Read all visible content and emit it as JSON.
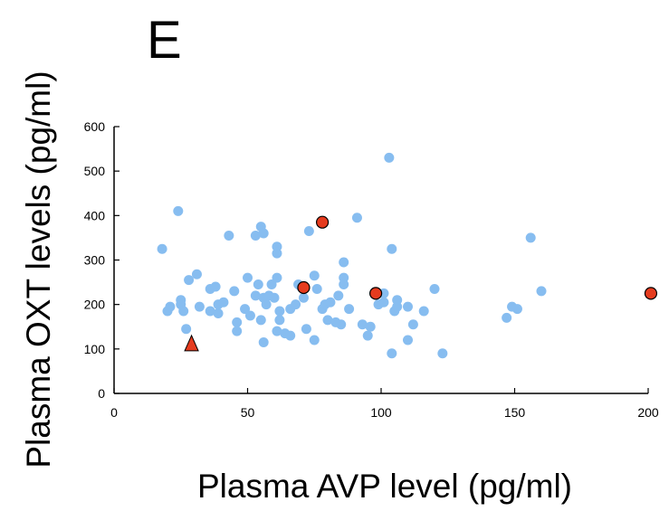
{
  "chart_data": {
    "type": "scatter",
    "panel_label": "E",
    "title": "",
    "xlabel": "Plasma AVP level (pg/ml)",
    "ylabel": "Plasma OXT levels (pg/ml)",
    "xlim": [
      0,
      200
    ],
    "ylim": [
      0,
      600
    ],
    "xticks": [
      0,
      50,
      100,
      150,
      200
    ],
    "yticks": [
      0,
      100,
      200,
      300,
      400,
      500,
      600
    ],
    "grid": false,
    "legend": "none",
    "series": [
      {
        "marker": "circle",
        "color": "#87bdf0",
        "points": [
          [
            18,
            325
          ],
          [
            20,
            185
          ],
          [
            21,
            195
          ],
          [
            24,
            410
          ],
          [
            25,
            210
          ],
          [
            25,
            200
          ],
          [
            26,
            185
          ],
          [
            27,
            145
          ],
          [
            28,
            255
          ],
          [
            31,
            268
          ],
          [
            32,
            195
          ],
          [
            36,
            235
          ],
          [
            36,
            185
          ],
          [
            38,
            240
          ],
          [
            39,
            180
          ],
          [
            39,
            200
          ],
          [
            41,
            205
          ],
          [
            43,
            355
          ],
          [
            45,
            230
          ],
          [
            46,
            160
          ],
          [
            46,
            140
          ],
          [
            49,
            190
          ],
          [
            50,
            260
          ],
          [
            51,
            175
          ],
          [
            53,
            355
          ],
          [
            53,
            220
          ],
          [
            54,
            245
          ],
          [
            55,
            375
          ],
          [
            55,
            165
          ],
          [
            56,
            360
          ],
          [
            56,
            215
          ],
          [
            56,
            115
          ],
          [
            57,
            200
          ],
          [
            58,
            220
          ],
          [
            59,
            245
          ],
          [
            60,
            215
          ],
          [
            61,
            330
          ],
          [
            61,
            315
          ],
          [
            61,
            140
          ],
          [
            61,
            260
          ],
          [
            62,
            165
          ],
          [
            62,
            185
          ],
          [
            64,
            135
          ],
          [
            66,
            190
          ],
          [
            66,
            130
          ],
          [
            68,
            200
          ],
          [
            69,
            245
          ],
          [
            70,
            240
          ],
          [
            71,
            215
          ],
          [
            72,
            145
          ],
          [
            73,
            365
          ],
          [
            75,
            265
          ],
          [
            75,
            120
          ],
          [
            76,
            235
          ],
          [
            78,
            190
          ],
          [
            79,
            200
          ],
          [
            80,
            165
          ],
          [
            81,
            205
          ],
          [
            83,
            160
          ],
          [
            84,
            220
          ],
          [
            85,
            155
          ],
          [
            86,
            260
          ],
          [
            86,
            245
          ],
          [
            86,
            295
          ],
          [
            88,
            190
          ],
          [
            91,
            395
          ],
          [
            93,
            155
          ],
          [
            95,
            130
          ],
          [
            96,
            150
          ],
          [
            99,
            200
          ],
          [
            101,
            225
          ],
          [
            101,
            205
          ],
          [
            103,
            530
          ],
          [
            104,
            90
          ],
          [
            104,
            325
          ],
          [
            105,
            185
          ],
          [
            106,
            195
          ],
          [
            106,
            210
          ],
          [
            110,
            120
          ],
          [
            110,
            195
          ],
          [
            112,
            155
          ],
          [
            116,
            185
          ],
          [
            120,
            235
          ],
          [
            123,
            90
          ],
          [
            147,
            170
          ],
          [
            149,
            195
          ],
          [
            151,
            190
          ],
          [
            156,
            350
          ],
          [
            160,
            230
          ]
        ]
      },
      {
        "marker": "circle",
        "color": "#e53b1e",
        "points": [
          [
            71,
            238
          ],
          [
            78,
            385
          ],
          [
            98,
            225
          ],
          [
            201,
            225
          ]
        ]
      },
      {
        "marker": "triangle",
        "color": "#e53b1e",
        "points": [
          [
            29,
            110
          ]
        ]
      }
    ]
  }
}
